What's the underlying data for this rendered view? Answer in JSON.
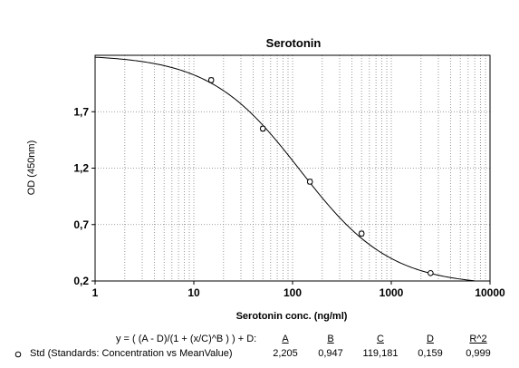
{
  "chart_data": {
    "type": "scatter",
    "title": "Serotonin",
    "xlabel": "Serotonin conc. (ng/ml)",
    "ylabel": "OD (450nm)",
    "x_scale": "log",
    "xlim": [
      1,
      10000
    ],
    "ylim": [
      0.2,
      2.2
    ],
    "x_ticks": [
      1,
      10,
      100,
      1000,
      10000
    ],
    "x_tick_labels": [
      "1",
      "10",
      "100",
      "1000",
      "10000"
    ],
    "y_ticks": [
      0.2,
      0.7,
      1.2,
      1.7
    ],
    "y_tick_labels": [
      "0,2",
      "0,7",
      "1,2",
      "1,7"
    ],
    "grid": true,
    "series": [
      {
        "name": "Std (Standards: Concentration vs MeanValue)",
        "x": [
          15,
          50,
          150,
          500,
          2500
        ],
        "y": [
          1.98,
          1.55,
          1.08,
          0.62,
          0.27
        ],
        "y_err": [
          0.02,
          0.02,
          0.02,
          0.02,
          0.01
        ]
      }
    ],
    "fit": {
      "equation": "y = ( (A - D)/(1 + (x/C)^B ) ) + D:",
      "headers": [
        "A",
        "B",
        "C",
        "D",
        "R^2"
      ],
      "values": [
        "2,205",
        "0,947",
        "119,181",
        "0,159",
        "0,999"
      ],
      "A": 2.205,
      "B": 0.947,
      "C": 119.181,
      "D": 0.159,
      "R2": 0.999,
      "x_range": [
        1,
        7000
      ]
    },
    "colors": {
      "line": "#000000",
      "grid": "#7f7f7f",
      "background": "#ffffff"
    }
  }
}
